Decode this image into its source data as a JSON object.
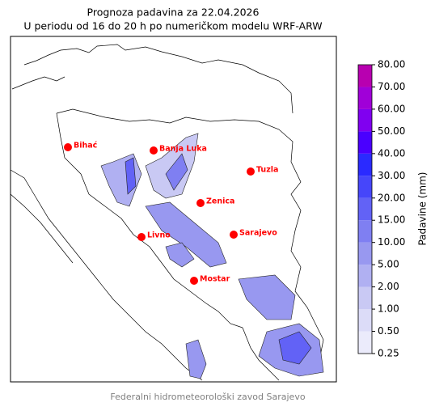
{
  "header": {
    "title": "Prognoza padavina za 22.04.2026",
    "subtitle": "U periodu od 16 do 20 h po numeričkom modelu WRF-ARW"
  },
  "cities": [
    "Bihać",
    "Banja Luka",
    "Tuzla",
    "Zenica",
    "Sarajevo",
    "Livno",
    "Mostar"
  ],
  "city_color": "#ff0000",
  "colorbar": {
    "label": "Padavine (mm)",
    "ticks": [
      {
        "value": 0.25,
        "label": "0.25"
      },
      {
        "value": 0.5,
        "label": "0.50"
      },
      {
        "value": 1,
        "label": "1.00"
      },
      {
        "value": 2,
        "label": "2.00"
      },
      {
        "value": 5,
        "label": "5.00"
      },
      {
        "value": 10,
        "label": "10.00"
      },
      {
        "value": 15,
        "label": "15.00"
      },
      {
        "value": 20,
        "label": "20.00"
      },
      {
        "value": 30,
        "label": "30.00"
      },
      {
        "value": 40,
        "label": "40.00"
      },
      {
        "value": 50,
        "label": "50.00"
      },
      {
        "value": 60,
        "label": "60.00"
      },
      {
        "value": 70,
        "label": "70.00"
      },
      {
        "value": 80,
        "label": "80.00"
      }
    ],
    "colors": [
      "#ebebfb",
      "#dcdcf8",
      "#c9c9f4",
      "#b0b0f2",
      "#9898f0",
      "#7f7ff2",
      "#6262f6",
      "#4646fa",
      "#2a2aff",
      "#4a00ff",
      "#8000f0",
      "#a000d8",
      "#b800b0"
    ]
  },
  "footer": "Federalni hidrometeorološki zavod Sarajevo"
}
